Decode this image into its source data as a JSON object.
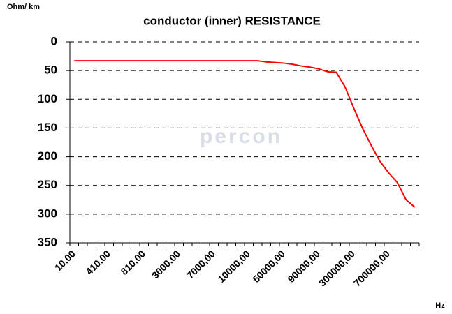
{
  "chart_data": {
    "type": "line",
    "title": "conductor  (inner) RESISTANCE",
    "y_axis_label": "Ohm/ km",
    "x_axis_label": "Hz",
    "watermark": "percon",
    "categories": [
      "10,00",
      null,
      null,
      null,
      "410,00",
      null,
      null,
      null,
      "810,00",
      null,
      null,
      null,
      "3000,00",
      null,
      null,
      null,
      "7000,00",
      null,
      null,
      null,
      "10000,00",
      null,
      null,
      null,
      "50000,00",
      null,
      null,
      null,
      "90000,00",
      null,
      null,
      null,
      "300000,00",
      null,
      null,
      null,
      "700000,00",
      null,
      null,
      null
    ],
    "series": [
      {
        "name": "resistance",
        "color": "#ff0000",
        "values": [
          33,
          33,
          33,
          33,
          33,
          33,
          33,
          33,
          33,
          33,
          33,
          33,
          33,
          33,
          33,
          33,
          33,
          33,
          33,
          33,
          33,
          33,
          35,
          36,
          37,
          39,
          42,
          44,
          47,
          52,
          53,
          78,
          115,
          150,
          180,
          208,
          228,
          245,
          275,
          288
        ]
      }
    ],
    "ylim": [
      350,
      0
    ],
    "yticks": [
      0,
      50,
      100,
      150,
      200,
      250,
      300,
      350
    ],
    "grid": true
  }
}
